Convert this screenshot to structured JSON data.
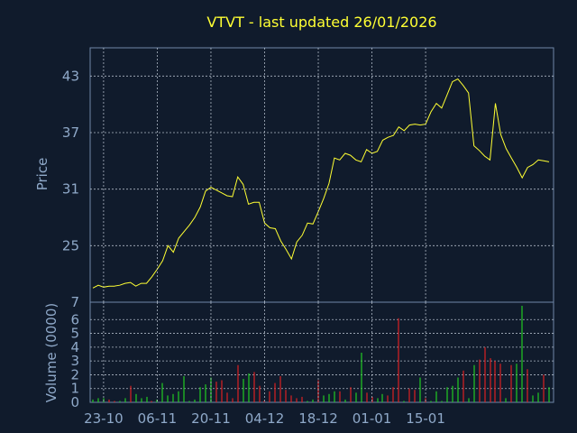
{
  "title": "VTVT - last updated 26/01/2026",
  "colors": {
    "background": "#101b2c",
    "price_line": "#ffff33",
    "volume_up": "#22cc22",
    "volume_down": "#dd2222",
    "text": "#8fa9c9",
    "title": "#ffff33"
  },
  "chart_data": [
    {
      "type": "line",
      "title": "VTVT - last updated 26/01/2026",
      "ylabel": "Price",
      "xlabel": "",
      "ylim": [
        19,
        46
      ],
      "yticks": [
        25,
        31,
        37,
        43
      ],
      "yticks_lower_label": "7",
      "grid": true,
      "x_tick_labels": [
        "23-10",
        "06-11",
        "20-11",
        "04-12",
        "18-12",
        "01-01",
        "15-01"
      ],
      "x_tick_index": [
        2,
        12,
        22,
        32,
        42,
        52,
        62
      ],
      "series": [
        {
          "values": [
            20.5,
            20.8,
            20.6,
            20.7,
            20.7,
            20.8,
            21.0,
            21.1,
            20.7,
            21.0,
            21.0,
            21.7,
            22.5,
            23.4,
            25.0,
            24.3,
            25.8,
            26.5,
            27.2,
            28.0,
            29.1,
            30.8,
            31.2,
            30.9,
            30.6,
            30.3,
            30.2,
            32.3,
            31.5,
            29.4,
            29.6,
            29.6,
            27.4,
            26.9,
            26.8,
            25.5,
            24.6,
            23.6,
            25.4,
            26.1,
            27.4,
            27.3,
            28.6,
            30.0,
            31.6,
            34.3,
            34.1,
            34.8,
            34.6,
            34.1,
            33.9,
            35.2,
            34.8,
            35.0,
            36.2,
            36.5,
            36.7,
            37.6,
            37.2,
            37.8,
            37.9,
            37.8,
            37.9,
            39.2,
            40.1,
            39.6,
            41.0,
            42.4,
            42.7,
            42.0,
            41.2,
            35.6,
            35.1,
            34.5,
            34.1,
            40.1,
            36.8,
            35.3,
            34.3,
            33.3,
            32.2,
            33.3,
            33.6,
            34.1,
            34.0,
            33.9
          ]
        }
      ]
    },
    {
      "type": "bar",
      "ylabel": "Volume (0000)",
      "ylim": [
        0,
        7
      ],
      "yticks": [
        0,
        1,
        2,
        3,
        4,
        5,
        6
      ],
      "grid": true,
      "series": [
        {
          "name": "",
          "values": [
            0.2,
            0.3,
            0.3,
            0.2,
            0.1,
            0.1,
            0.3,
            1.2,
            0.6,
            0.3,
            0.4,
            0.1,
            0.2,
            1.4,
            0.5,
            0.6,
            0.8,
            1.9,
            0.1,
            0.2,
            1.1,
            1.3,
            1.8,
            1.5,
            1.6,
            0.7,
            0.3,
            2.7,
            1.7,
            2.1,
            2.2,
            1.2,
            0.1,
            0.8,
            1.4,
            1.9,
            0.9,
            0.5,
            0.3,
            0.4,
            0.1,
            0.2,
            1.6,
            0.5,
            0.6,
            0.8,
            0.8,
            0.2,
            1.1,
            0.7,
            3.6,
            0.7,
            0.4,
            0.3,
            0.6,
            0.5,
            1.1,
            6.1,
            0.1,
            1.0,
            0.9,
            1.8,
            0.3,
            0.1,
            0.8,
            0.1,
            1.1,
            1.2,
            1.8,
            2.3,
            0.3,
            2.7,
            3.1,
            4.0,
            3.2,
            3.0,
            2.8,
            0.3,
            2.7,
            2.8,
            7.0,
            2.4,
            0.5,
            0.7,
            2.0,
            1.1
          ],
          "up": [
            1,
            1,
            1,
            0,
            0,
            1,
            1,
            0,
            1,
            1,
            1,
            0,
            1,
            1,
            1,
            1,
            1,
            1,
            1,
            1,
            1,
            1,
            1,
            0,
            0,
            0,
            0,
            0,
            1,
            1,
            0,
            0,
            0,
            0,
            0,
            0,
            0,
            0,
            0,
            0,
            1,
            1,
            0,
            1,
            1,
            1,
            0,
            1,
            0,
            1,
            1,
            0,
            0,
            1,
            1,
            0,
            0,
            0,
            1,
            0,
            0,
            1,
            0,
            1,
            1,
            1,
            1,
            1,
            1,
            0,
            1,
            1,
            0,
            0,
            0,
            0,
            0,
            1,
            0,
            1,
            1,
            0,
            1,
            1,
            0,
            1
          ]
        }
      ]
    }
  ]
}
